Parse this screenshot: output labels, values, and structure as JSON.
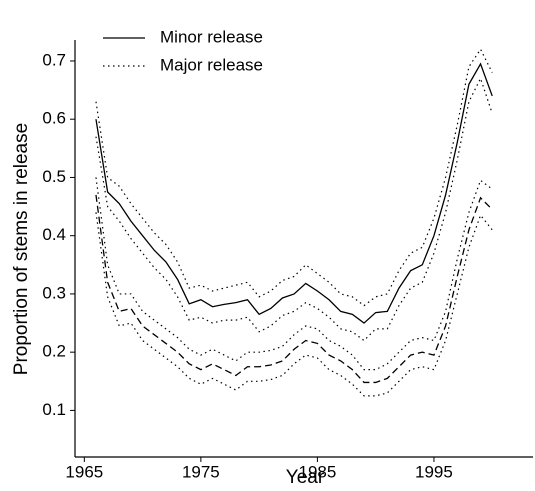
{
  "chart_data": {
    "type": "line",
    "x_label": "Year",
    "y_label": "Proportion of stems in release",
    "x": [
      1966,
      1967,
      1968,
      1969,
      1970,
      1971,
      1972,
      1973,
      1974,
      1975,
      1976,
      1977,
      1978,
      1979,
      1980,
      1981,
      1982,
      1983,
      1984,
      1985,
      1986,
      1987,
      1988,
      1989,
      1990,
      1991,
      1992,
      1993,
      1994,
      1995,
      1996,
      1997,
      1998,
      1999,
      2000
    ],
    "series": [
      {
        "name": "Minor release",
        "color": "#000000",
        "dash": "solid",
        "band_dash": "dotted",
        "values": [
          0.6,
          0.475,
          0.455,
          0.425,
          0.4,
          0.375,
          0.355,
          0.325,
          0.283,
          0.29,
          0.278,
          0.282,
          0.285,
          0.29,
          0.265,
          0.275,
          0.293,
          0.3,
          0.318,
          0.305,
          0.29,
          0.27,
          0.265,
          0.25,
          0.268,
          0.27,
          0.31,
          0.34,
          0.35,
          0.4,
          0.47,
          0.56,
          0.66,
          0.695,
          0.64
        ],
        "upper": [
          0.63,
          0.5,
          0.485,
          0.455,
          0.43,
          0.405,
          0.385,
          0.355,
          0.31,
          0.315,
          0.305,
          0.31,
          0.315,
          0.32,
          0.295,
          0.305,
          0.323,
          0.33,
          0.35,
          0.335,
          0.32,
          0.3,
          0.295,
          0.28,
          0.295,
          0.3,
          0.34,
          0.37,
          0.38,
          0.43,
          0.5,
          0.59,
          0.69,
          0.72,
          0.68
        ],
        "lower": [
          0.57,
          0.45,
          0.425,
          0.395,
          0.37,
          0.345,
          0.325,
          0.295,
          0.255,
          0.26,
          0.25,
          0.255,
          0.255,
          0.26,
          0.235,
          0.245,
          0.263,
          0.27,
          0.285,
          0.275,
          0.26,
          0.24,
          0.235,
          0.22,
          0.24,
          0.24,
          0.28,
          0.31,
          0.32,
          0.37,
          0.44,
          0.53,
          0.63,
          0.67,
          0.61
        ]
      },
      {
        "name": "Major release",
        "color": "#000000",
        "dash": "dashed",
        "band_dash": "dotted",
        "legend_dash": "dotted",
        "values": [
          0.47,
          0.32,
          0.27,
          0.275,
          0.245,
          0.23,
          0.215,
          0.2,
          0.18,
          0.17,
          0.18,
          0.17,
          0.16,
          0.175,
          0.175,
          0.178,
          0.185,
          0.205,
          0.22,
          0.215,
          0.195,
          0.185,
          0.17,
          0.148,
          0.148,
          0.155,
          0.175,
          0.195,
          0.2,
          0.195,
          0.245,
          0.33,
          0.41,
          0.465,
          0.445
        ],
        "upper": [
          0.5,
          0.35,
          0.3,
          0.3,
          0.27,
          0.255,
          0.24,
          0.225,
          0.205,
          0.195,
          0.205,
          0.195,
          0.185,
          0.2,
          0.2,
          0.203,
          0.21,
          0.23,
          0.245,
          0.24,
          0.22,
          0.21,
          0.195,
          0.17,
          0.17,
          0.18,
          0.2,
          0.22,
          0.225,
          0.22,
          0.27,
          0.36,
          0.44,
          0.495,
          0.48
        ],
        "lower": [
          0.44,
          0.295,
          0.245,
          0.25,
          0.22,
          0.205,
          0.19,
          0.175,
          0.155,
          0.145,
          0.155,
          0.145,
          0.135,
          0.15,
          0.15,
          0.153,
          0.16,
          0.18,
          0.195,
          0.19,
          0.17,
          0.16,
          0.145,
          0.125,
          0.125,
          0.13,
          0.15,
          0.17,
          0.175,
          0.17,
          0.22,
          0.3,
          0.38,
          0.435,
          0.41
        ]
      }
    ],
    "xlim": [
      1964.2,
      2003.5
    ],
    "xticks": [
      1965,
      1975,
      1985,
      1995
    ],
    "ylim": [
      0.02,
      0.736
    ],
    "yticks": [
      0.1,
      0.2,
      0.3,
      0.4,
      0.5,
      0.6,
      0.7
    ],
    "grid": false,
    "legend": "upper left"
  }
}
